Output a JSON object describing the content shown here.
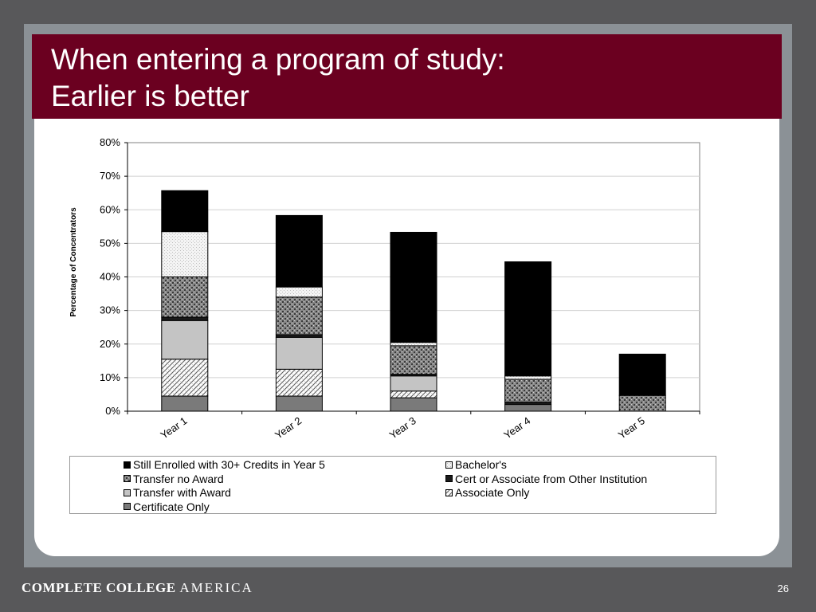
{
  "slide": {
    "title_line1": "When entering a program of study:",
    "title_line2": "Earlier is better",
    "footer_brand_bold": "COMPLETE COLLEGE",
    "footer_brand_light": "AMERICA",
    "page_number": "26"
  },
  "colors": {
    "title_bar": "#6b0020",
    "still_enrolled": "#000000",
    "bachelors": "#f0f0f0",
    "transfer_no_award": "#7d7d7d",
    "cert_other_institution": "#1a1a1a",
    "transfer_with_award": "#c4c4c4",
    "associate_only": "#e6e6e6",
    "certificate_only": "#7a7a7a"
  },
  "chart_data": {
    "type": "bar",
    "stacked": true,
    "categories": [
      "Year 1",
      "Year 2",
      "Year 3",
      "Year 4",
      "Year 5"
    ],
    "ylabel": "Percentage of Concentrators",
    "ylim": [
      0,
      80
    ],
    "yticks": [
      "0%",
      "10%",
      "20%",
      "30%",
      "40%",
      "50%",
      "60%",
      "70%",
      "80%"
    ],
    "grid": true,
    "legend_position": "bottom",
    "series": [
      {
        "name": "Certificate Only",
        "values": [
          4.5,
          4.5,
          4.0,
          2.0,
          0.0
        ]
      },
      {
        "name": "Associate Only",
        "values": [
          11.0,
          8.0,
          2.0,
          0.0,
          0.0
        ]
      },
      {
        "name": "Transfer with Award",
        "values": [
          11.5,
          9.5,
          4.5,
          0.0,
          0.0
        ]
      },
      {
        "name": "Cert or Associate from Other Institution",
        "values": [
          1.0,
          0.8,
          0.5,
          0.7,
          0.0
        ]
      },
      {
        "name": "Transfer no Award",
        "values": [
          12.0,
          11.2,
          8.5,
          6.8,
          4.7
        ]
      },
      {
        "name": "Bachelor's",
        "values": [
          13.5,
          3.0,
          1.0,
          1.0,
          0.0
        ]
      },
      {
        "name": "Still Enrolled with 30+ Credits in Year 5",
        "values": [
          12.2,
          21.3,
          32.8,
          34.0,
          12.3
        ]
      }
    ],
    "legend_order": [
      "Still Enrolled with 30+ Credits in Year 5",
      "Bachelor's",
      "Transfer no Award",
      "Cert or Associate from Other Institution",
      "Transfer with Award",
      "Associate Only",
      "Certificate Only"
    ]
  }
}
